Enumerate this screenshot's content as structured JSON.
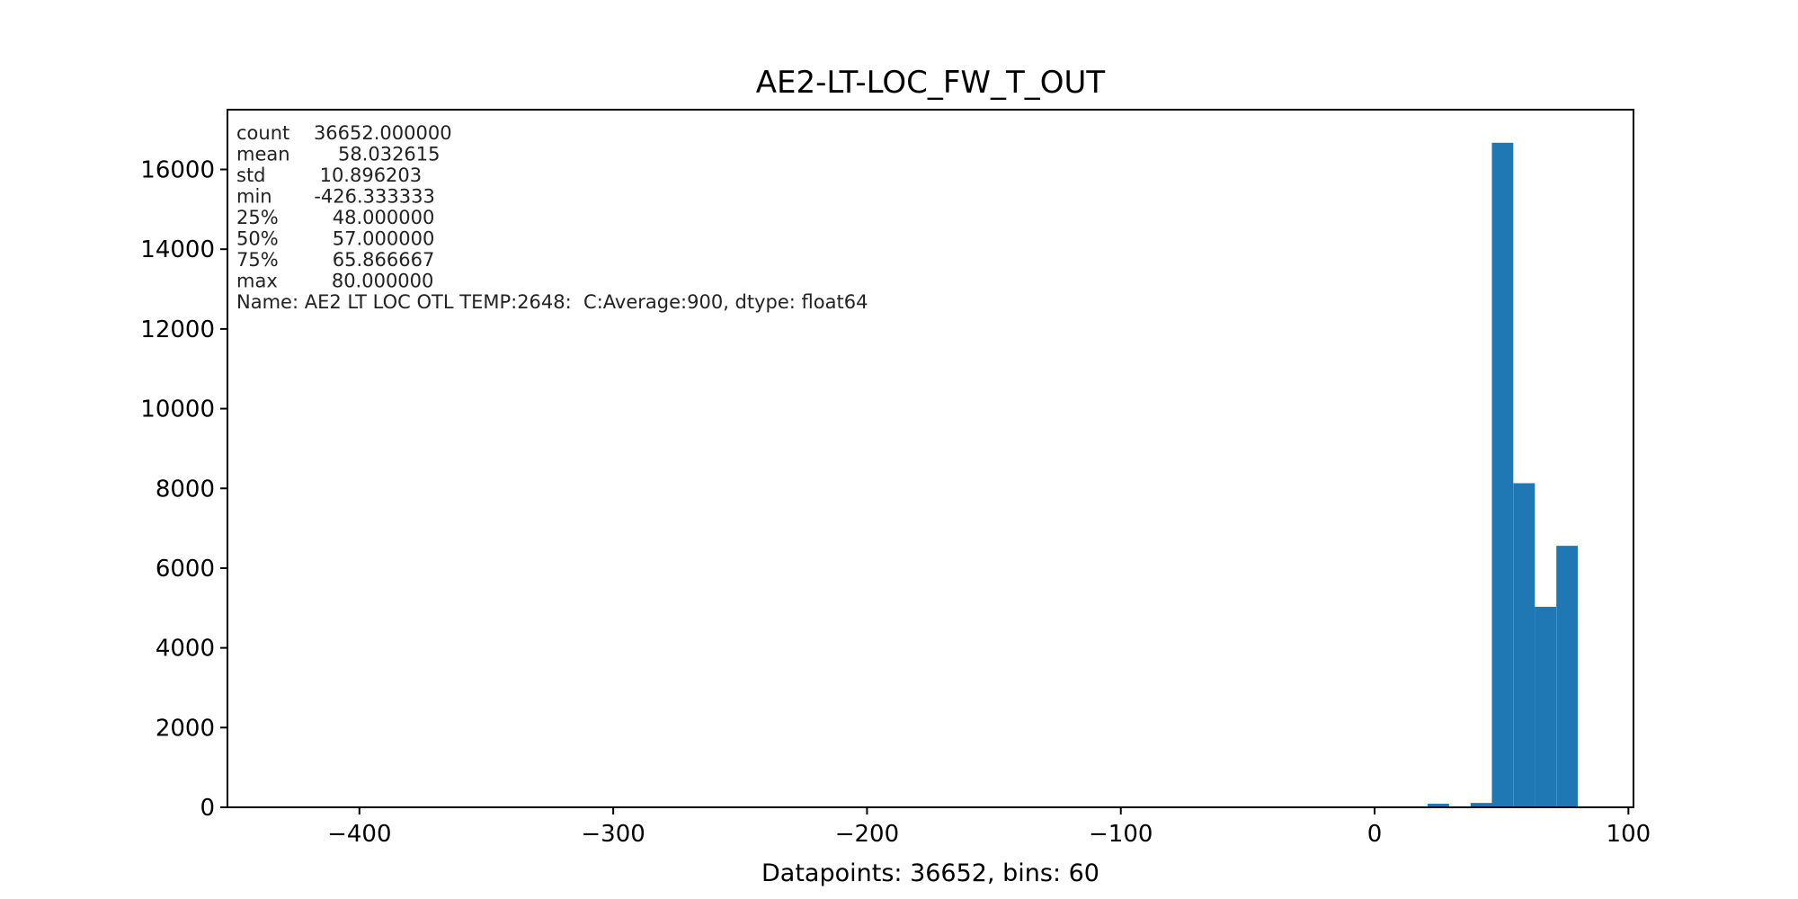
{
  "chart_data": {
    "type": "bar",
    "title": "AE2-LT-LOC_FW_T_OUT",
    "xlabel": "Datapoints: 36652, bins: 60",
    "ylabel": "",
    "xlim": [
      -452,
      102
    ],
    "ylim": [
      0,
      17500
    ],
    "x_ticks": [
      -400,
      -300,
      -200,
      -100,
      0,
      100
    ],
    "x_tick_labels": [
      "−400",
      "−300",
      "−200",
      "−100",
      "0",
      "100"
    ],
    "y_ticks": [
      0,
      2000,
      4000,
      6000,
      8000,
      10000,
      12000,
      14000,
      16000
    ],
    "y_tick_labels": [
      "0",
      "2000",
      "4000",
      "6000",
      "8000",
      "10000",
      "12000",
      "14000",
      "16000"
    ],
    "bin_width": 8.44,
    "bars": [
      {
        "x": 20.9,
        "value": 90
      },
      {
        "x": 37.8,
        "value": 110
      },
      {
        "x": 46.2,
        "value": 16670
      },
      {
        "x": 54.7,
        "value": 8130
      },
      {
        "x": 63.1,
        "value": 5030
      },
      {
        "x": 71.6,
        "value": 6560
      }
    ],
    "bar_color": "#1f77b4",
    "grid": false,
    "legend": "none",
    "stats_text": [
      "count    36652.000000",
      "mean        58.032615",
      "std         10.896203",
      "min       -426.333333",
      "25%         48.000000",
      "50%         57.000000",
      "75%         65.866667",
      "max         80.000000",
      "Name: AE2 LT LOC OTL TEMP:2648:  C:Average:900, dtype: float64"
    ]
  }
}
